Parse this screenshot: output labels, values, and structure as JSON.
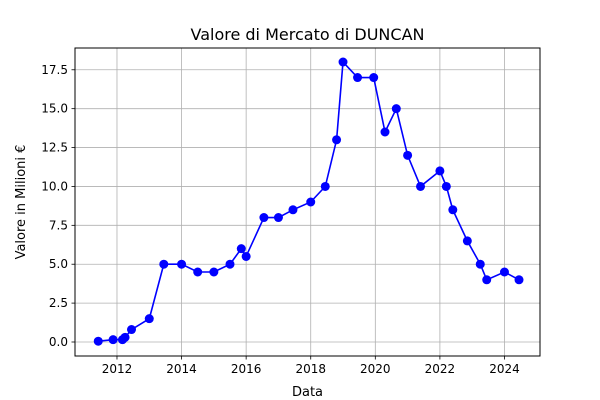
{
  "chart_data": {
    "type": "line",
    "title": "Valore di Mercato di DUNCAN",
    "xlabel": "Data",
    "ylabel": "Valore in Milioni €",
    "xlim": [
      2010.7,
      2025.1
    ],
    "ylim": [
      -0.9,
      18.9
    ],
    "xticks": [
      2012,
      2014,
      2016,
      2018,
      2020,
      2022,
      2024
    ],
    "yticks": [
      {
        "value": 0.0,
        "label": "0.0"
      },
      {
        "value": 2.5,
        "label": "2.5"
      },
      {
        "value": 5.0,
        "label": "5.0"
      },
      {
        "value": 7.5,
        "label": "7.5"
      },
      {
        "value": 10.0,
        "label": "10.0"
      },
      {
        "value": 12.5,
        "label": "12.5"
      },
      {
        "value": 15.0,
        "label": "15.0"
      },
      {
        "value": 17.5,
        "label": "17.5"
      }
    ],
    "grid": true,
    "line_color": "#0000ff",
    "marker_color": "#0000ff",
    "series": [
      {
        "x": [
          2011.42,
          2011.88,
          2012.17,
          2012.25,
          2012.45,
          2013.0,
          2013.45,
          2014.0,
          2014.5,
          2015.0,
          2015.5,
          2015.85,
          2016.0,
          2016.55,
          2017.0,
          2017.45,
          2018.0,
          2018.45,
          2018.8,
          2019.0,
          2019.45,
          2019.95,
          2020.3,
          2020.65,
          2021.0,
          2021.4,
          2022.0,
          2022.2,
          2022.4,
          2022.85,
          2023.25,
          2023.45,
          2024.0,
          2024.45
        ],
        "y": [
          0.05,
          0.15,
          0.15,
          0.3,
          0.8,
          1.5,
          5.0,
          5.0,
          4.5,
          4.5,
          5.0,
          6.0,
          5.5,
          8.0,
          8.0,
          8.5,
          9.0,
          10.0,
          13.0,
          18.0,
          17.0,
          17.0,
          13.5,
          15.0,
          12.0,
          10.0,
          11.0,
          10.0,
          8.5,
          6.5,
          5.0,
          4.0,
          4.5,
          4.0
        ]
      }
    ]
  }
}
